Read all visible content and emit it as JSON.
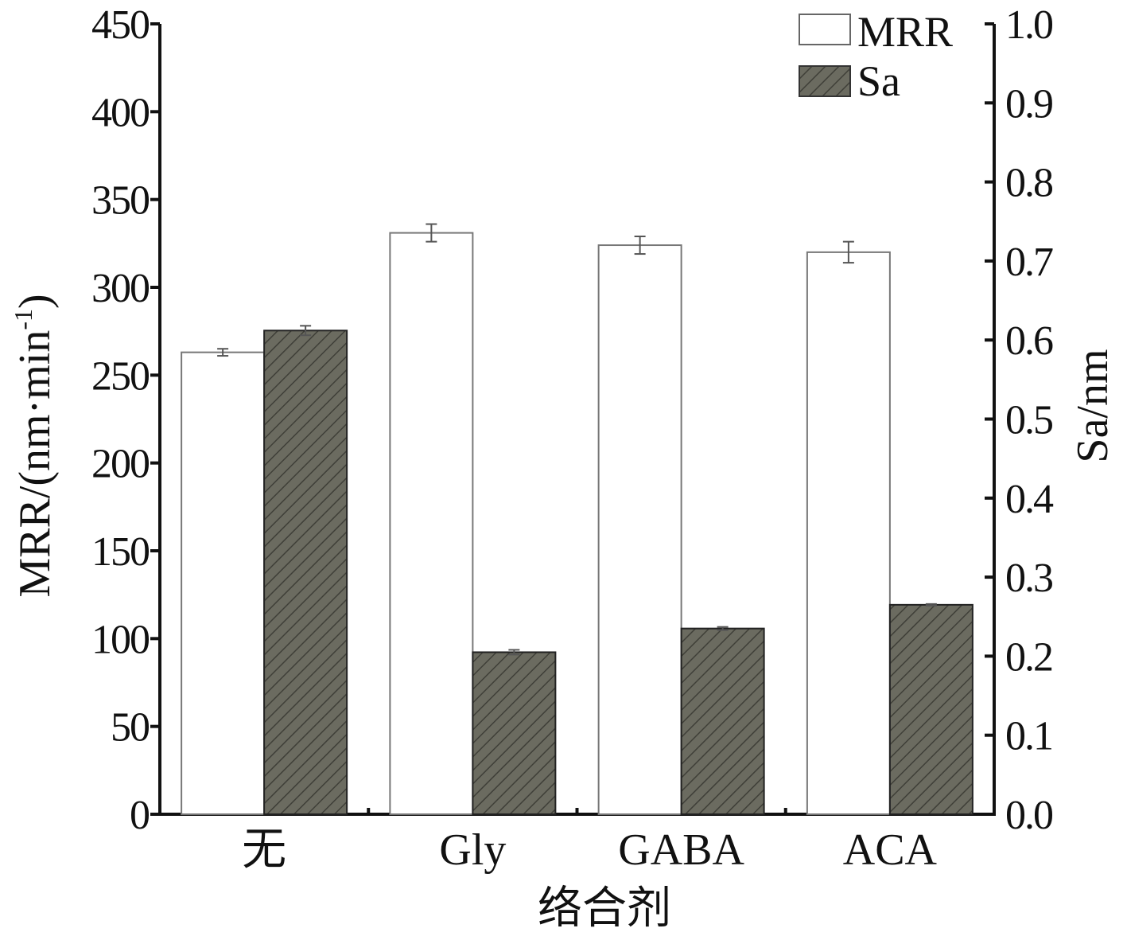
{
  "chart_data": {
    "type": "bar",
    "xlabel": "络合剂",
    "categories": [
      "无",
      "Gly",
      "GABA",
      "ACA"
    ],
    "y_left": {
      "label": "MRR/(nm·min",
      "label_sup": "-1",
      "label_close": ")",
      "ylim": [
        0,
        450
      ],
      "ticks": [
        "0",
        "50",
        "100",
        "150",
        "200",
        "250",
        "300",
        "350",
        "400",
        "450"
      ]
    },
    "y_right": {
      "label": "Sa/nm",
      "ylim": [
        0.0,
        1.0
      ],
      "ticks": [
        "0.0",
        "0.1",
        "0.2",
        "0.3",
        "0.4",
        "0.5",
        "0.6",
        "0.7",
        "0.8",
        "0.9",
        "1.0"
      ]
    },
    "series": [
      {
        "name": "MRR",
        "axis": "left",
        "values": [
          263,
          331,
          324,
          320
        ],
        "errors": [
          2,
          5,
          5,
          6
        ],
        "style": "open",
        "color": "#ffffff"
      },
      {
        "name": "Sa",
        "axis": "right",
        "values": [
          0.612,
          0.205,
          0.235,
          0.265
        ],
        "errors": [
          0.006,
          0.003,
          0.002,
          0.001
        ],
        "style": "hatched",
        "color": "#6b6b60"
      }
    ],
    "legend": {
      "position": "top-right"
    },
    "grid": false
  }
}
